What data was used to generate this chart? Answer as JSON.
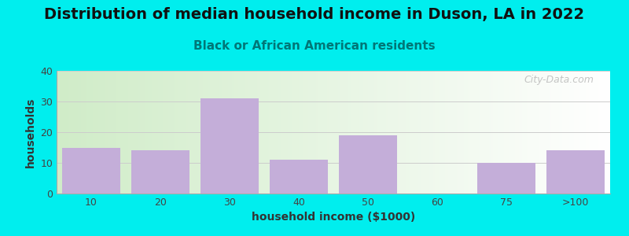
{
  "title": "Distribution of median household income in Duson, LA in 2022",
  "subtitle": "Black or African American residents",
  "xlabel": "household income ($1000)",
  "ylabel": "households",
  "categories": [
    "10",
    "20",
    "30",
    "40",
    "50",
    "60",
    "75",
    ">100"
  ],
  "values": [
    15,
    14,
    31,
    11,
    19,
    0,
    10,
    14
  ],
  "bar_color": "#c4aed9",
  "ylim": [
    0,
    40
  ],
  "yticks": [
    0,
    10,
    20,
    30,
    40
  ],
  "background_color": "#00eeee",
  "plot_bg_topleft": "#d0ecc8",
  "plot_bg_right": "#f0f8f0",
  "plot_bg_bottom": "#ffffff",
  "title_fontsize": 14,
  "subtitle_fontsize": 11,
  "axis_label_fontsize": 10,
  "tick_fontsize": 9,
  "watermark": "City-Data.com",
  "subtitle_color": "#007777",
  "title_color": "#111111",
  "grid_color": "#cccccc"
}
